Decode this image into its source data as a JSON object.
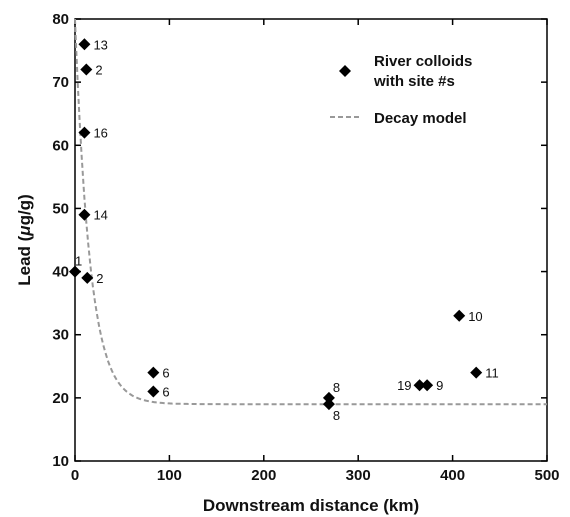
{
  "chart_data": {
    "type": "scatter",
    "xlabel": "Downstream distance (km)",
    "ylabel_prefix": "Lead (",
    "ylabel_mu": "μ",
    "ylabel_suffix": "g/g)",
    "xlim": [
      0,
      500
    ],
    "ylim": [
      10,
      80
    ],
    "xticks": [
      0,
      100,
      200,
      300,
      400,
      500
    ],
    "yticks": [
      10,
      20,
      30,
      40,
      50,
      60,
      70,
      80
    ],
    "grid": false,
    "legend_position": "top-right",
    "series": [
      {
        "name": "River colloids with site #s",
        "legend_lines": [
          "River colloids",
          "with site #s"
        ],
        "marker": "diamond",
        "color": "#000000",
        "points": [
          {
            "x": 10,
            "y": 76,
            "label": "13"
          },
          {
            "x": 12,
            "y": 72,
            "label": "2"
          },
          {
            "x": 10,
            "y": 62,
            "label": "16"
          },
          {
            "x": 10,
            "y": 49,
            "label": "14"
          },
          {
            "x": 0,
            "y": 40,
            "label": "1"
          },
          {
            "x": 13,
            "y": 39,
            "label": "2"
          },
          {
            "x": 83,
            "y": 24,
            "label": "6"
          },
          {
            "x": 83,
            "y": 21,
            "label": "6"
          },
          {
            "x": 269,
            "y": 20,
            "label": "8"
          },
          {
            "x": 269,
            "y": 19,
            "label": "8"
          },
          {
            "x": 365,
            "y": 22,
            "label": "19"
          },
          {
            "x": 373,
            "y": 22,
            "label": "9"
          },
          {
            "x": 407,
            "y": 33,
            "label": "10"
          },
          {
            "x": 425,
            "y": 24,
            "label": "11"
          }
        ]
      },
      {
        "name": "Decay model",
        "style": "dashed",
        "color": "#999999",
        "model": {
          "form": "y = base + amp * exp(-x / scale)",
          "base": 19,
          "amp": 61,
          "scale": 16
        }
      }
    ]
  }
}
